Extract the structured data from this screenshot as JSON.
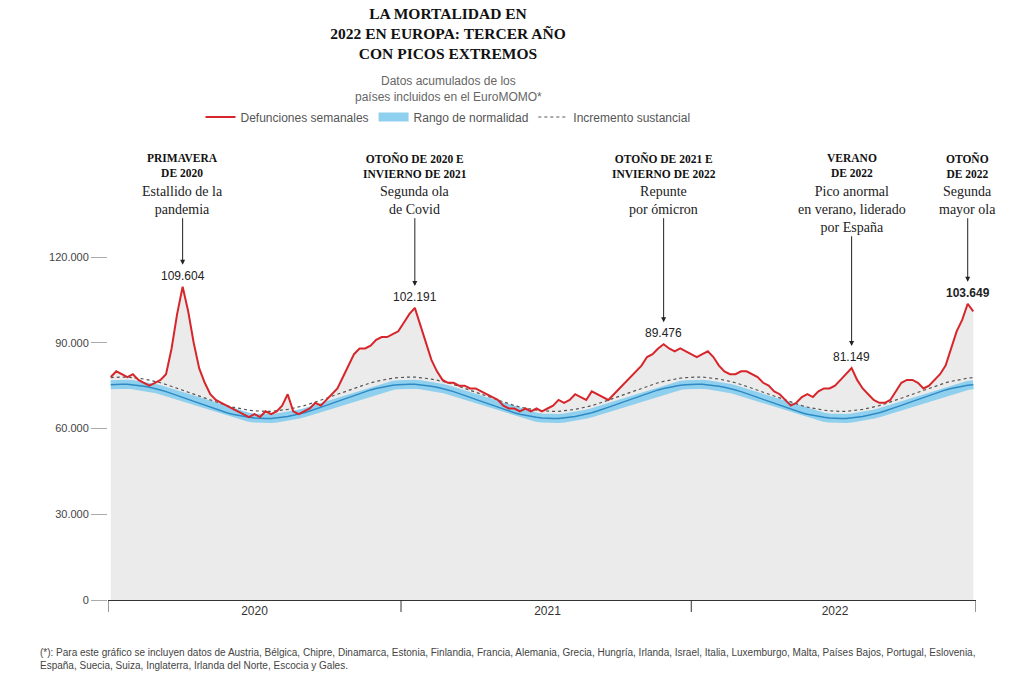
{
  "chart_data": {
    "type": "line",
    "title": [
      "LA MORTALIDAD EN",
      "2022 EN EUROPA: TERCER AÑO",
      "CON PICOS EXTREMOS"
    ],
    "subtitle": [
      "Datos acumulados de los",
      "países incluidos en el EuroMOMO*"
    ],
    "categories": [
      null,
      null,
      null,
      null,
      null,
      null,
      null,
      null,
      null,
      null,
      null,
      null,
      null,
      null,
      null,
      null,
      null,
      null,
      null,
      null,
      null,
      null,
      null,
      null,
      null,
      null,
      "2020",
      null,
      null,
      null,
      null,
      null,
      null,
      null,
      null,
      null,
      null,
      null,
      null,
      null,
      null,
      null,
      null,
      null,
      null,
      null,
      null,
      null,
      null,
      null,
      null,
      null,
      null,
      null,
      null,
      null,
      null,
      null,
      null,
      null,
      null,
      null,
      null,
      null,
      null,
      null,
      null,
      null,
      null,
      null,
      null,
      null,
      null,
      null,
      null,
      null,
      null,
      null,
      null,
      "2021",
      null,
      null,
      null,
      null,
      null,
      null,
      null,
      null,
      null,
      null,
      null,
      null,
      null,
      null,
      null,
      null,
      null,
      null,
      null,
      null,
      null,
      null,
      null,
      null,
      null,
      null,
      null,
      null,
      null,
      null,
      null,
      null,
      null,
      null,
      null,
      null,
      null,
      null,
      null,
      null,
      null,
      null,
      null,
      null,
      null,
      null,
      null,
      null,
      null,
      null,
      null,
      "2022",
      null,
      null,
      null,
      null,
      null,
      null,
      null,
      null,
      null,
      null,
      null,
      null,
      null,
      null,
      null,
      null,
      null,
      null,
      null,
      null,
      null,
      null,
      null,
      null,
      null
    ],
    "series": [
      {
        "name": "Defunciones semanales",
        "color": "#d7262b",
        "line_style": "solid",
        "values": [
          78000,
          80000,
          79000,
          78000,
          79000,
          77000,
          76000,
          75000,
          76000,
          77000,
          79000,
          88000,
          100000,
          109604,
          101000,
          90000,
          81000,
          76000,
          72000,
          70000,
          69000,
          68000,
          67000,
          66000,
          65000,
          64000,
          65000,
          64000,
          66000,
          65000,
          66000,
          68000,
          72000,
          66000,
          65000,
          66000,
          67000,
          69000,
          68000,
          70000,
          72000,
          74000,
          78000,
          82000,
          86000,
          88000,
          88000,
          89000,
          91000,
          92000,
          92000,
          93000,
          94000,
          97000,
          100000,
          102191,
          96000,
          90000,
          84000,
          80000,
          77000,
          76000,
          76000,
          75000,
          75000,
          74000,
          74000,
          73000,
          72000,
          71000,
          70000,
          68000,
          67000,
          67000,
          66000,
          67000,
          66000,
          67000,
          66000,
          67000,
          68000,
          70000,
          69000,
          70000,
          72000,
          71000,
          70000,
          73000,
          72000,
          71000,
          70000,
          72000,
          74000,
          76000,
          78000,
          80000,
          82000,
          85000,
          86000,
          88000,
          89476,
          88000,
          87000,
          88000,
          87000,
          86000,
          85000,
          86000,
          87000,
          85000,
          82000,
          80000,
          79000,
          79000,
          80000,
          80000,
          79000,
          78000,
          76000,
          75000,
          73000,
          72000,
          70000,
          68000,
          69000,
          71000,
          72000,
          71000,
          73000,
          74000,
          74000,
          75000,
          77000,
          79000,
          81149,
          77000,
          74000,
          72000,
          70000,
          69000,
          69000,
          70000,
          73000,
          76000,
          77000,
          77000,
          76000,
          74000,
          75000,
          77000,
          79000,
          82000,
          88000,
          94000,
          98000,
          103649,
          101000
        ]
      },
      {
        "name": "Rango de normalidad",
        "color": "#8fd0ef",
        "line_style": "band",
        "values": [
          75300,
          75500,
          75500,
          75500,
          75300,
          75100,
          74800,
          74400,
          74000,
          73500,
          72900,
          72300,
          71600,
          70900,
          70200,
          69500,
          68800,
          68100,
          67400,
          66700,
          66100,
          65500,
          65000,
          64600,
          64200,
          63900,
          63700,
          63500,
          63500,
          63500,
          63700,
          63900,
          64200,
          64600,
          65000,
          65500,
          66100,
          66700,
          67400,
          68100,
          68800,
          69500,
          70200,
          70900,
          71600,
          72300,
          72900,
          73500,
          74000,
          74400,
          74800,
          75100,
          75300,
          75500,
          75500,
          75500,
          75300,
          75100,
          74800,
          74400,
          74000,
          73500,
          72900,
          72300,
          71600,
          70900,
          70200,
          69500,
          68800,
          68100,
          67400,
          66700,
          66100,
          65500,
          65000,
          64600,
          64200,
          63900,
          63700,
          63500,
          63500,
          63500,
          63700,
          63900,
          64200,
          64600,
          65000,
          65500,
          66100,
          66700,
          67400,
          68100,
          68800,
          69500,
          70200,
          70900,
          71600,
          72300,
          72900,
          73500,
          74000,
          74400,
          74800,
          75100,
          75300,
          75500,
          75500,
          75500,
          75300,
          75100,
          74800,
          74400,
          74000,
          73500,
          72900,
          72300,
          71600,
          70900,
          70200,
          69500,
          68800,
          68100,
          67400,
          66700,
          66100,
          65500,
          65000,
          64600,
          64200,
          63900,
          63700,
          63500,
          63500,
          63500,
          63700,
          63900,
          64200,
          64600,
          65000,
          65500,
          66100,
          66700,
          67400,
          68100,
          68800,
          69500,
          70200,
          70900,
          71600,
          72300,
          72900,
          73500,
          74000,
          74400,
          74800,
          75100,
          75300
        ]
      },
      {
        "name": "Incremento sustancial",
        "color": "#555555",
        "line_style": "dotted",
        "values": [
          77800,
          78000,
          78000,
          78000,
          77800,
          77600,
          77300,
          76900,
          76500,
          76000,
          75400,
          74800,
          74100,
          73400,
          72700,
          72000,
          71300,
          70600,
          69900,
          69200,
          68600,
          68000,
          67500,
          67100,
          66700,
          66400,
          66200,
          66000,
          66000,
          66000,
          66200,
          66400,
          66700,
          67100,
          67500,
          68000,
          68600,
          69200,
          69900,
          70600,
          71300,
          72000,
          72700,
          73400,
          74100,
          74800,
          75400,
          76000,
          76500,
          76900,
          77300,
          77600,
          77800,
          78000,
          78000,
          78000,
          77800,
          77600,
          77300,
          76900,
          76500,
          76000,
          75400,
          74800,
          74100,
          73400,
          72700,
          72000,
          71300,
          70600,
          69900,
          69200,
          68600,
          68000,
          67500,
          67100,
          66700,
          66400,
          66200,
          66000,
          66000,
          66000,
          66200,
          66400,
          66700,
          67100,
          67500,
          68000,
          68600,
          69200,
          69900,
          70600,
          71300,
          72000,
          72700,
          73400,
          74100,
          74800,
          75400,
          76000,
          76500,
          76900,
          77300,
          77600,
          77800,
          78000,
          78000,
          78000,
          77800,
          77600,
          77300,
          76900,
          76500,
          76000,
          75400,
          74800,
          74100,
          73400,
          72700,
          72000,
          71300,
          70600,
          69900,
          69200,
          68600,
          68000,
          67500,
          67100,
          66700,
          66400,
          66200,
          66000,
          66000,
          66000,
          66200,
          66400,
          66700,
          67100,
          67500,
          68000,
          68600,
          69200,
          69900,
          70600,
          71300,
          72000,
          72700,
          73400,
          74100,
          74800,
          75400,
          76000,
          76500,
          76900,
          77300,
          77600,
          77800
        ]
      }
    ],
    "ylim": [
      0,
      120000
    ],
    "yticks": [
      0,
      {
        "value": 30000,
        "label": "30.000"
      },
      {
        "value": 60000,
        "label": "60.000"
      },
      {
        "value": 90000,
        "label": "90.000"
      },
      {
        "value": 120000,
        "label": "120.000"
      }
    ],
    "grid": false,
    "legend": "top",
    "annotations": [
      {
        "value": 109604,
        "label": "109.604",
        "title": [
          "PRIMAVERA",
          "DE 2020"
        ],
        "text": [
          "Estallido de la",
          "pandemia"
        ]
      },
      {
        "value": 102191,
        "label": "102.191",
        "title": [
          "OTOÑO DE 2020 E",
          "INVIERNO DE 2021"
        ],
        "text": [
          "Segunda ola",
          "de Covid"
        ]
      },
      {
        "value": 89476,
        "label": "89.476",
        "title": [
          "OTOÑO DE 2021 E",
          "INVIERNO DE 2022"
        ],
        "text": [
          "Repunte",
          "por ómicron"
        ]
      },
      {
        "value": 81149,
        "label": "81.149",
        "title": [
          "VERANO",
          "DE 2022"
        ],
        "text": [
          "Pico anormal",
          "en verano, liderado",
          "por España"
        ]
      },
      {
        "value": 103649,
        "label": "103.649",
        "title": [
          "OTOÑO",
          "DE 2022"
        ],
        "text": [
          "Segunda",
          "mayor ola"
        ]
      }
    ],
    "footnote": [
      "(*): Para este gráfico se incluyen datos de Austria, Bélgica, Chipre, Dinamarca, Estonia, Finlandia, Francia, Alemania, Grecia, Hungría, Irlanda, Israel, Italia, Luxemburgo, Malta, Países Bajos, Portugal, Eslovenia,",
      "España, Suecia, Suiza, Inglaterra, Irlanda del Norte, Escocia y Gales."
    ]
  }
}
